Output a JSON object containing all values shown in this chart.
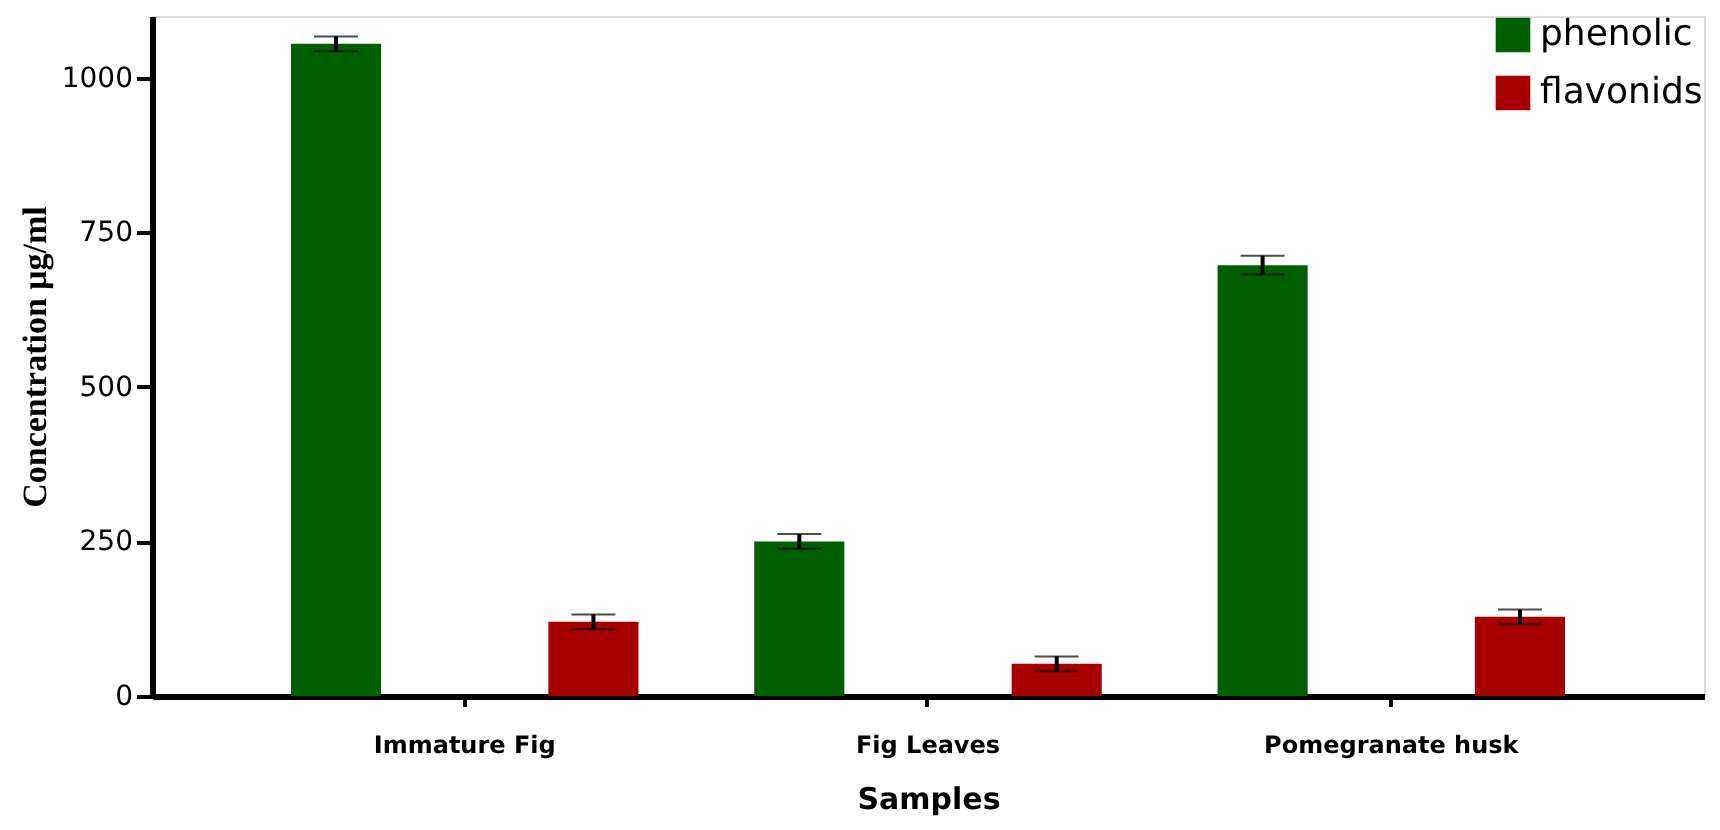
{
  "chart_data": {
    "type": "bar",
    "xlabel": "Samples",
    "ylabel": "Concentration μg/ml",
    "categories": [
      "Immature Fig",
      "Fig Leaves",
      "Pomegranate husk"
    ],
    "series": [
      {
        "name": "phenolic",
        "color": "#005f00",
        "values": [
          1055,
          250,
          697
        ],
        "errors": [
          12,
          12,
          15
        ]
      },
      {
        "name": "flavonids",
        "color": "#a80000",
        "values": [
          120,
          52,
          128
        ],
        "errors": [
          12,
          12,
          12
        ]
      }
    ],
    "ylim": [
      0,
      1100
    ],
    "yticks": [
      0,
      250,
      500,
      750,
      1000
    ],
    "grid": false,
    "legend": "top right"
  }
}
